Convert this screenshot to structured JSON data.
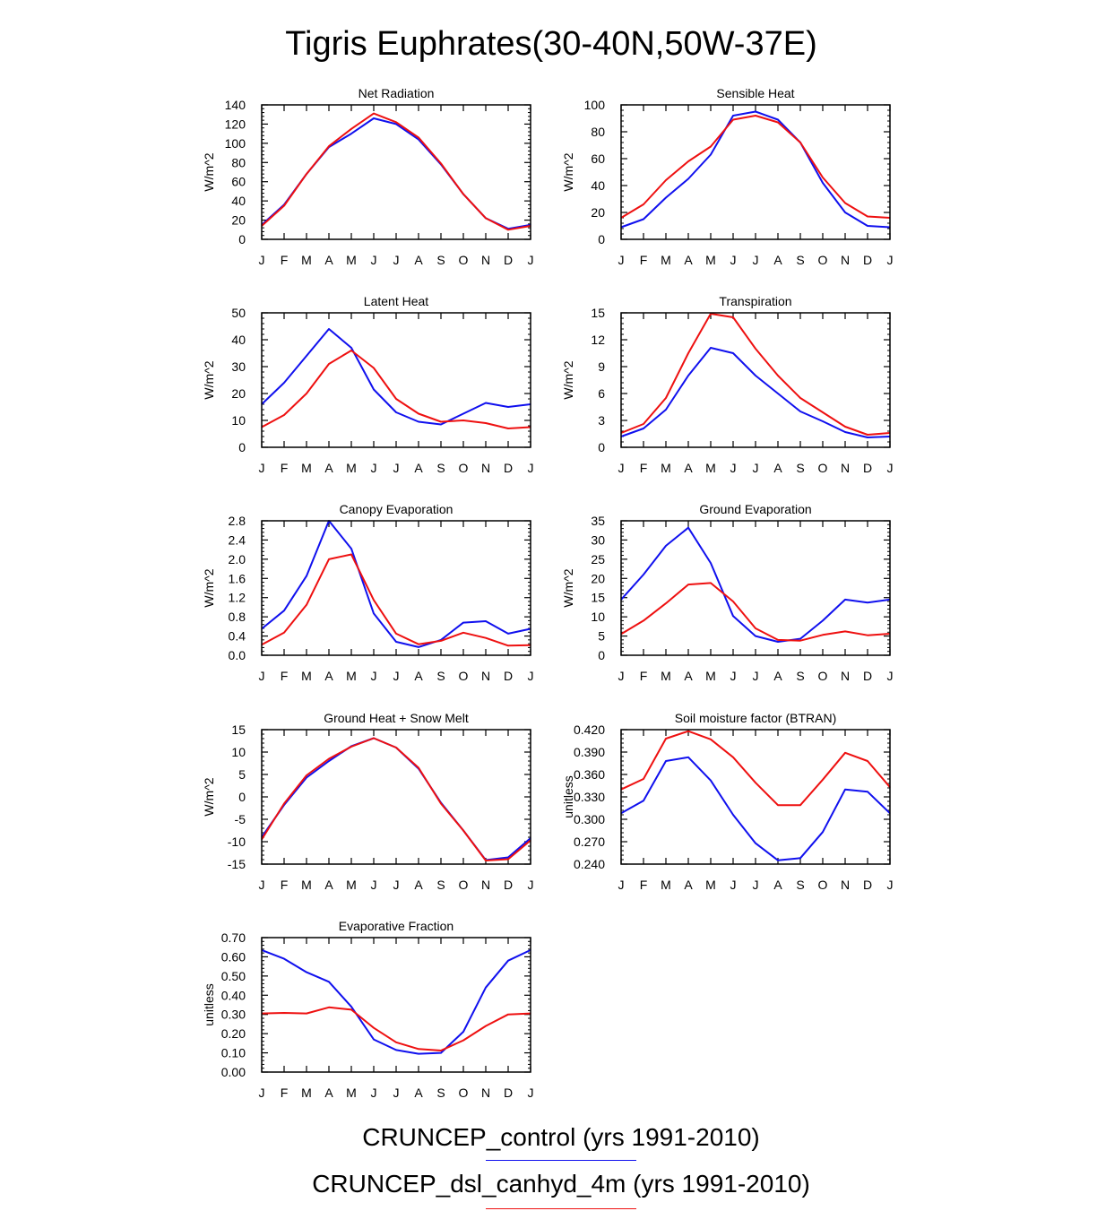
{
  "figure": {
    "title": "Tigris Euphrates(30-40N,50W-37E)",
    "legend": [
      {
        "label": "CRUNCEP_control (yrs 1991-2010)",
        "color": "#1010ee"
      },
      {
        "label": "CRUNCEP_dsl_canhyd_4m (yrs 1991-2010)",
        "color": "#ee1010"
      }
    ]
  },
  "chart_data": [
    {
      "type": "line",
      "title": "Net Radiation",
      "ylabel": "W/m^2",
      "categories": [
        "J",
        "F",
        "M",
        "A",
        "M",
        "J",
        "J",
        "A",
        "S",
        "O",
        "N",
        "D",
        "J"
      ],
      "ylim": [
        0,
        140
      ],
      "yticks": [
        0,
        20,
        40,
        60,
        80,
        100,
        120,
        140
      ],
      "ytick_labels": [
        "0",
        "20",
        "40",
        "60",
        "80",
        "100",
        "120",
        "140"
      ],
      "series": [
        {
          "name": "CRUNCEP_control",
          "color": "#1010ee",
          "values": [
            15,
            36,
            68,
            96,
            110,
            126,
            120,
            104,
            78,
            47,
            22,
            11,
            15
          ]
        },
        {
          "name": "CRUNCEP_dsl_canhyd_4m",
          "color": "#ee1010",
          "values": [
            14,
            35,
            68,
            97,
            115,
            131,
            122,
            106,
            79,
            47,
            22,
            10,
            14
          ]
        }
      ]
    },
    {
      "type": "line",
      "title": "Sensible Heat",
      "ylabel": "W/m^2",
      "categories": [
        "J",
        "F",
        "M",
        "A",
        "M",
        "J",
        "J",
        "A",
        "S",
        "O",
        "N",
        "D",
        "J"
      ],
      "ylim": [
        0,
        100
      ],
      "yticks": [
        0,
        20,
        40,
        60,
        80,
        100
      ],
      "ytick_labels": [
        "0",
        "20",
        "40",
        "60",
        "80",
        "100"
      ],
      "series": [
        {
          "name": "CRUNCEP_control",
          "color": "#1010ee",
          "values": [
            9,
            15,
            31,
            45,
            63,
            92,
            95,
            89,
            72,
            42,
            20,
            10,
            9
          ]
        },
        {
          "name": "CRUNCEP_dsl_canhyd_4m",
          "color": "#ee1010",
          "values": [
            16,
            26,
            44,
            58,
            69,
            89,
            92,
            87,
            72,
            46,
            27,
            17,
            16
          ]
        }
      ]
    },
    {
      "type": "line",
      "title": "Latent Heat",
      "ylabel": "W/m^2",
      "categories": [
        "J",
        "F",
        "M",
        "A",
        "M",
        "J",
        "J",
        "A",
        "S",
        "O",
        "N",
        "D",
        "J"
      ],
      "ylim": [
        0,
        50
      ],
      "yticks": [
        0,
        10,
        20,
        30,
        40,
        50
      ],
      "ytick_labels": [
        "0",
        "10",
        "20",
        "30",
        "40",
        "50"
      ],
      "series": [
        {
          "name": "CRUNCEP_control",
          "color": "#1010ee",
          "values": [
            16,
            24,
            34,
            44,
            37,
            21.5,
            13,
            9.5,
            8.5,
            12.5,
            16.5,
            15,
            16
          ]
        },
        {
          "name": "CRUNCEP_dsl_canhyd_4m",
          "color": "#ee1010",
          "values": [
            7.5,
            12,
            20,
            31,
            36,
            29.5,
            18,
            12.5,
            9.5,
            10,
            9,
            7,
            7.5
          ]
        }
      ]
    },
    {
      "type": "line",
      "title": "Transpiration",
      "ylabel": "W/m^2",
      "categories": [
        "J",
        "F",
        "M",
        "A",
        "M",
        "J",
        "J",
        "A",
        "S",
        "O",
        "N",
        "D",
        "J"
      ],
      "ylim": [
        0,
        15
      ],
      "yticks": [
        0,
        3,
        6,
        9,
        12,
        15
      ],
      "ytick_labels": [
        "0",
        "3",
        "6",
        "9",
        "12",
        "15"
      ],
      "series": [
        {
          "name": "CRUNCEP_control",
          "color": "#1010ee",
          "values": [
            1.2,
            2.1,
            4.2,
            8,
            11.1,
            10.5,
            8,
            6,
            4,
            2.9,
            1.7,
            1.1,
            1.2
          ]
        },
        {
          "name": "CRUNCEP_dsl_canhyd_4m",
          "color": "#ee1010",
          "values": [
            1.6,
            2.6,
            5.5,
            10.5,
            14.9,
            14.5,
            11,
            8,
            5.5,
            3.9,
            2.3,
            1.4,
            1.6
          ]
        }
      ]
    },
    {
      "type": "line",
      "title": "Canopy Evaporation",
      "ylabel": "W/m^2",
      "categories": [
        "J",
        "F",
        "M",
        "A",
        "M",
        "J",
        "J",
        "A",
        "S",
        "O",
        "N",
        "D",
        "J"
      ],
      "ylim": [
        0,
        2.8
      ],
      "yticks": [
        0,
        0.4,
        0.8,
        1.2,
        1.6,
        2.0,
        2.4,
        2.8
      ],
      "ytick_labels": [
        "0.0",
        "0.4",
        "0.8",
        "1.2",
        "1.6",
        "2.0",
        "2.4",
        "2.8"
      ],
      "series": [
        {
          "name": "CRUNCEP_control",
          "color": "#1010ee",
          "values": [
            0.55,
            0.93,
            1.65,
            2.8,
            2.22,
            0.87,
            0.28,
            0.17,
            0.32,
            0.68,
            0.71,
            0.45,
            0.55
          ]
        },
        {
          "name": "CRUNCEP_dsl_canhyd_4m",
          "color": "#ee1010",
          "values": [
            0.22,
            0.47,
            1.05,
            2.0,
            2.1,
            1.15,
            0.45,
            0.23,
            0.3,
            0.47,
            0.36,
            0.2,
            0.21
          ]
        }
      ]
    },
    {
      "type": "line",
      "title": "Ground Evaporation",
      "ylabel": "W/m^2",
      "categories": [
        "J",
        "F",
        "M",
        "A",
        "M",
        "J",
        "J",
        "A",
        "S",
        "O",
        "N",
        "D",
        "J"
      ],
      "ylim": [
        0,
        35
      ],
      "yticks": [
        0,
        5,
        10,
        15,
        20,
        25,
        30,
        35
      ],
      "ytick_labels": [
        "0",
        "5",
        "10",
        "15",
        "20",
        "25",
        "30",
        "35"
      ],
      "series": [
        {
          "name": "CRUNCEP_control",
          "color": "#1010ee",
          "values": [
            14.5,
            21,
            28.5,
            33.2,
            24,
            10.2,
            5,
            3.5,
            4.3,
            9,
            14.5,
            13.7,
            14.5
          ]
        },
        {
          "name": "CRUNCEP_dsl_canhyd_4m",
          "color": "#ee1010",
          "values": [
            5.5,
            9,
            13.5,
            18.4,
            18.8,
            14,
            7,
            4,
            3.8,
            5.3,
            6.2,
            5.2,
            5.6
          ]
        }
      ]
    },
    {
      "type": "line",
      "title": "Ground Heat + Snow Melt",
      "ylabel": "W/m^2",
      "categories": [
        "J",
        "F",
        "M",
        "A",
        "M",
        "J",
        "J",
        "A",
        "S",
        "O",
        "N",
        "D",
        "J"
      ],
      "ylim": [
        -15,
        15
      ],
      "yticks": [
        -15,
        -10,
        -5,
        0,
        5,
        10,
        15
      ],
      "ytick_labels": [
        "-15",
        "-10",
        "-5",
        "0",
        "5",
        "10",
        "15"
      ],
      "series": [
        {
          "name": "CRUNCEP_control",
          "color": "#1010ee",
          "values": [
            -9,
            -1.8,
            4.3,
            8,
            11.3,
            13.1,
            11,
            6.3,
            -1.3,
            -7.5,
            -14.1,
            -13.5,
            -9.2
          ]
        },
        {
          "name": "CRUNCEP_dsl_canhyd_4m",
          "color": "#ee1010",
          "values": [
            -9.5,
            -1.5,
            4.8,
            8.5,
            11.2,
            13.1,
            11,
            6.5,
            -1.5,
            -7.5,
            -14.2,
            -13.9,
            -9.7
          ]
        }
      ]
    },
    {
      "type": "line",
      "title": "Soil moisture factor (BTRAN)",
      "ylabel": "unitless",
      "categories": [
        "J",
        "F",
        "M",
        "A",
        "M",
        "J",
        "J",
        "A",
        "S",
        "O",
        "N",
        "D",
        "J"
      ],
      "ylim": [
        0.24,
        0.42
      ],
      "yticks": [
        0.24,
        0.27,
        0.3,
        0.33,
        0.36,
        0.39,
        0.42
      ],
      "ytick_labels": [
        "0.240",
        "0.270",
        "0.300",
        "0.330",
        "0.360",
        "0.390",
        "0.420"
      ],
      "series": [
        {
          "name": "CRUNCEP_control",
          "color": "#1010ee",
          "values": [
            0.308,
            0.325,
            0.378,
            0.383,
            0.352,
            0.306,
            0.268,
            0.245,
            0.248,
            0.283,
            0.34,
            0.337,
            0.308
          ]
        },
        {
          "name": "CRUNCEP_dsl_canhyd_4m",
          "color": "#ee1010",
          "values": [
            0.34,
            0.354,
            0.408,
            0.418,
            0.407,
            0.383,
            0.349,
            0.319,
            0.319,
            0.353,
            0.389,
            0.378,
            0.343
          ]
        }
      ]
    },
    {
      "type": "line",
      "title": "Evaporative Fraction",
      "ylabel": "unitless",
      "categories": [
        "J",
        "F",
        "M",
        "A",
        "M",
        "J",
        "J",
        "A",
        "S",
        "O",
        "N",
        "D",
        "J"
      ],
      "ylim": [
        0,
        0.7
      ],
      "yticks": [
        0,
        0.1,
        0.2,
        0.3,
        0.4,
        0.5,
        0.6,
        0.7
      ],
      "ytick_labels": [
        "0.00",
        "0.10",
        "0.20",
        "0.30",
        "0.40",
        "0.50",
        "0.60",
        "0.70"
      ],
      "series": [
        {
          "name": "CRUNCEP_control",
          "color": "#1010ee",
          "values": [
            0.635,
            0.59,
            0.52,
            0.47,
            0.34,
            0.17,
            0.115,
            0.095,
            0.1,
            0.21,
            0.44,
            0.58,
            0.635
          ]
        },
        {
          "name": "CRUNCEP_dsl_canhyd_4m",
          "color": "#ee1010",
          "values": [
            0.305,
            0.308,
            0.305,
            0.337,
            0.325,
            0.23,
            0.155,
            0.12,
            0.112,
            0.165,
            0.24,
            0.3,
            0.305
          ]
        }
      ]
    }
  ]
}
